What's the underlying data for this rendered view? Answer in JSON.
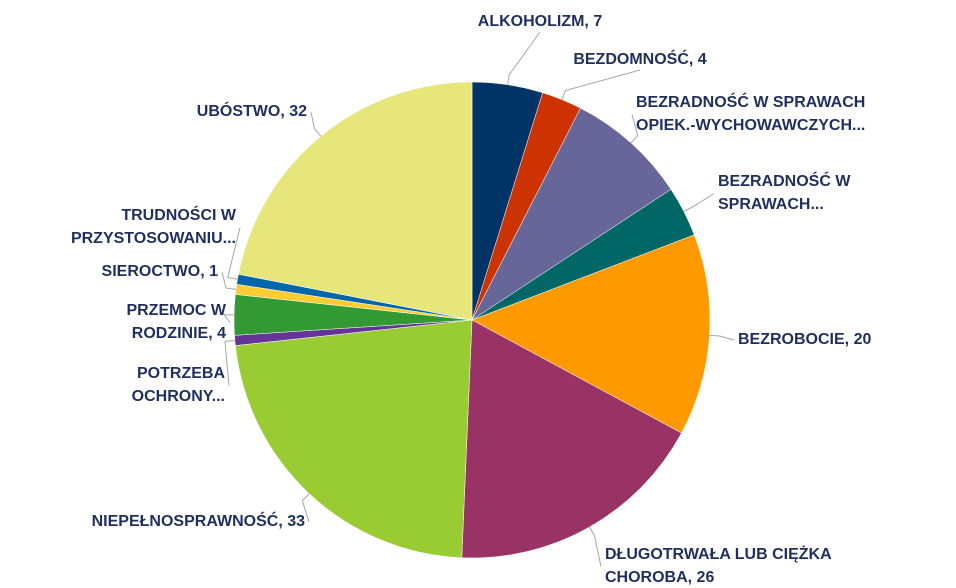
{
  "chart_data": {
    "type": "pie",
    "categories": [
      [
        "ALKOHOLIZM, 7"
      ],
      [
        "BEZDOMNOŚĆ, 4"
      ],
      [
        "BEZRADNOŚĆ W SPRAWACH",
        "OPIEK.-WYCHOWAWCZYCH..."
      ],
      [
        "BEZRADNOŚĆ W",
        "SPRAWACH..."
      ],
      [
        "BEZROBOCIE, 20"
      ],
      [
        "DŁUGOTRWAŁA LUB CIĘŻKA",
        "CHOROBA, 26"
      ],
      [
        "NIEPEŁNOSPRAWNOŚĆ, 33"
      ],
      [
        "POTRZEBA",
        "OCHRONY..."
      ],
      [
        "PRZEMOC W",
        "RODZINIE, 4"
      ],
      [
        "SIEROCTWO, 1"
      ],
      [
        "TRUDNOŚCI W",
        "PRZYSTOSOWANIU..."
      ],
      [
        "UBÓSTWO, 32"
      ]
    ],
    "values": [
      7,
      4,
      12,
      5,
      20,
      26,
      33,
      1,
      4,
      1,
      1,
      32
    ],
    "colors": [
      "#003366",
      "#cc3300",
      "#666699",
      "#006666",
      "#ff9900",
      "#993366",
      "#99cc33",
      "#663399",
      "#339933",
      "#ffcc33",
      "#0066aa",
      "#e6e67a"
    ]
  }
}
